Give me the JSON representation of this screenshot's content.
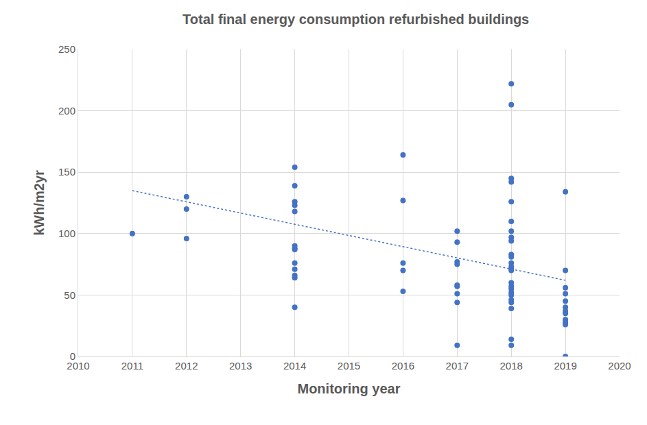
{
  "chart_data": {
    "type": "scatter",
    "title": "Total final energy consumption refurbished buildings",
    "x_label": "Monitoring year",
    "y_label": "kWh/m2yr",
    "xlim": [
      2010,
      2020
    ],
    "xticks": [
      2010,
      2011,
      2012,
      2013,
      2014,
      2015,
      2016,
      2017,
      2018,
      2019,
      2020
    ],
    "ylim": [
      0,
      250
    ],
    "yticks": [
      0,
      50,
      100,
      150,
      200,
      250
    ],
    "grid": true,
    "series": [
      {
        "type": "scatter",
        "color": "#4472c4",
        "marker": "circle",
        "x": [
          2011,
          2012,
          2012,
          2012,
          2014,
          2014,
          2014,
          2014,
          2014,
          2014,
          2014,
          2014,
          2014,
          2014,
          2014,
          2014,
          2014,
          2016,
          2016,
          2016,
          2016,
          2016,
          2017,
          2017,
          2017,
          2017,
          2017,
          2017,
          2017,
          2017,
          2017,
          2018,
          2018,
          2018,
          2018,
          2018,
          2018,
          2018,
          2018,
          2018,
          2018,
          2018,
          2018,
          2018,
          2018,
          2018,
          2018,
          2018,
          2018,
          2018,
          2018,
          2018,
          2018,
          2018,
          2018,
          2018,
          2019,
          2019,
          2019,
          2019,
          2019,
          2019,
          2019,
          2019,
          2019,
          2019,
          2019,
          2019,
          2019
        ],
        "values": [
          100,
          130,
          120,
          96,
          154,
          139,
          126,
          123,
          118,
          90,
          88,
          87,
          76,
          71,
          66,
          64,
          40,
          164,
          127,
          76,
          70,
          53,
          102,
          93,
          77,
          75,
          58,
          57,
          51,
          44,
          9,
          222,
          205,
          145,
          142,
          126,
          110,
          102,
          97,
          94,
          83,
          81,
          76,
          73,
          71,
          70,
          60,
          57,
          55,
          52,
          50,
          46,
          44,
          39,
          14,
          9,
          134,
          70,
          56,
          51,
          45,
          40,
          37,
          35,
          30,
          28,
          27,
          26,
          0
        ]
      },
      {
        "type": "line",
        "color": "#4472c4",
        "line_style": "dotted",
        "x": [
          2011,
          2019
        ],
        "values": [
          135,
          62
        ]
      }
    ]
  }
}
